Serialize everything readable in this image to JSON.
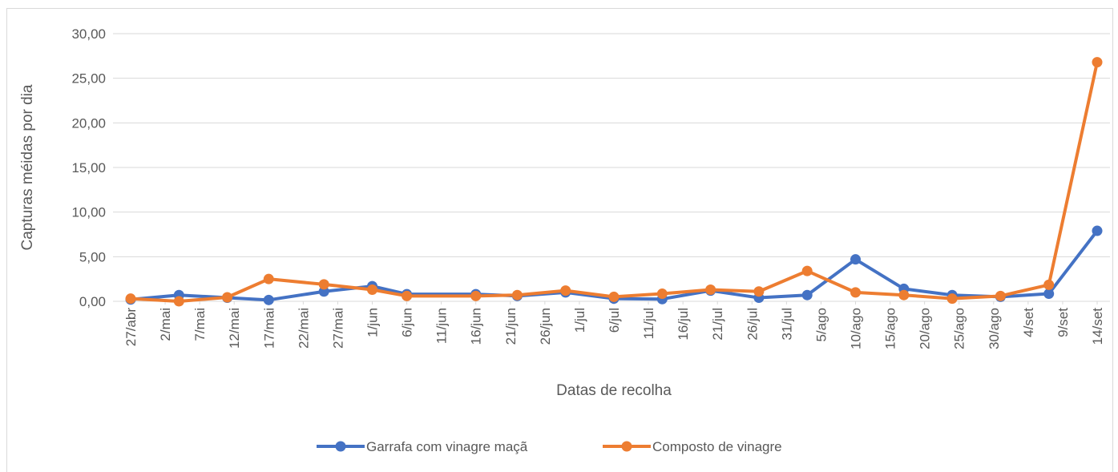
{
  "chart_data": {
    "type": "line",
    "y_label": "Capturas méidas por dia",
    "x_label": "Datas de recolha",
    "x": [
      0,
      7,
      14,
      20,
      28,
      35,
      40,
      50,
      56,
      63,
      70,
      77,
      84,
      91,
      98,
      105,
      112,
      119,
      126,
      133,
      140
    ],
    "xlim": [
      0,
      140
    ],
    "xticks": [
      {
        "value": 0,
        "label": "27/abr"
      },
      {
        "value": 5,
        "label": "2/mai"
      },
      {
        "value": 10,
        "label": "7/mai"
      },
      {
        "value": 15,
        "label": "12/mai"
      },
      {
        "value": 20,
        "label": "17/mai"
      },
      {
        "value": 25,
        "label": "22/mai"
      },
      {
        "value": 30,
        "label": "27/mai"
      },
      {
        "value": 35,
        "label": "1/jun"
      },
      {
        "value": 40,
        "label": "6/jun"
      },
      {
        "value": 45,
        "label": "11/jun"
      },
      {
        "value": 50,
        "label": "16/jun"
      },
      {
        "value": 55,
        "label": "21/jun"
      },
      {
        "value": 60,
        "label": "26/jun"
      },
      {
        "value": 65,
        "label": "1/jul"
      },
      {
        "value": 70,
        "label": "6/jul"
      },
      {
        "value": 75,
        "label": "11/jul"
      },
      {
        "value": 80,
        "label": "16/jul"
      },
      {
        "value": 85,
        "label": "21/jul"
      },
      {
        "value": 90,
        "label": "26/jul"
      },
      {
        "value": 95,
        "label": "31/jul"
      },
      {
        "value": 100,
        "label": "5/ago"
      },
      {
        "value": 105,
        "label": "10/ago"
      },
      {
        "value": 110,
        "label": "15/ago"
      },
      {
        "value": 115,
        "label": "20/ago"
      },
      {
        "value": 120,
        "label": "25/ago"
      },
      {
        "value": 125,
        "label": "30/ago"
      },
      {
        "value": 130,
        "label": "4/set"
      },
      {
        "value": 135,
        "label": "9/set"
      },
      {
        "value": 140,
        "label": "14/set"
      }
    ],
    "ylim": [
      0,
      30
    ],
    "yticks": [
      {
        "value": 0,
        "label": "0,00"
      },
      {
        "value": 5,
        "label": "5,00"
      },
      {
        "value": 10,
        "label": "10,00"
      },
      {
        "value": 15,
        "label": "15,00"
      },
      {
        "value": 20,
        "label": "20,00"
      },
      {
        "value": 25,
        "label": "25,00"
      },
      {
        "value": 30,
        "label": "30,00"
      }
    ],
    "grid": true,
    "legend": "bottom",
    "series": [
      {
        "name": "Garrafa com vinagre maçã",
        "color": "#4472c4",
        "values": [
          0.2,
          0.7,
          0.4,
          0.15,
          1.1,
          1.7,
          0.8,
          0.8,
          0.6,
          1.0,
          0.3,
          0.25,
          1.2,
          0.4,
          0.7,
          4.7,
          1.4,
          0.7,
          0.5,
          0.85,
          7.9
        ]
      },
      {
        "name": "Composto de vinagre",
        "color": "#ed7d31",
        "values": [
          0.3,
          0.0,
          0.45,
          2.5,
          1.9,
          1.3,
          0.6,
          0.6,
          0.7,
          1.2,
          0.5,
          0.85,
          1.3,
          1.1,
          3.4,
          1.0,
          0.7,
          0.3,
          0.6,
          1.85,
          26.8
        ]
      }
    ]
  }
}
